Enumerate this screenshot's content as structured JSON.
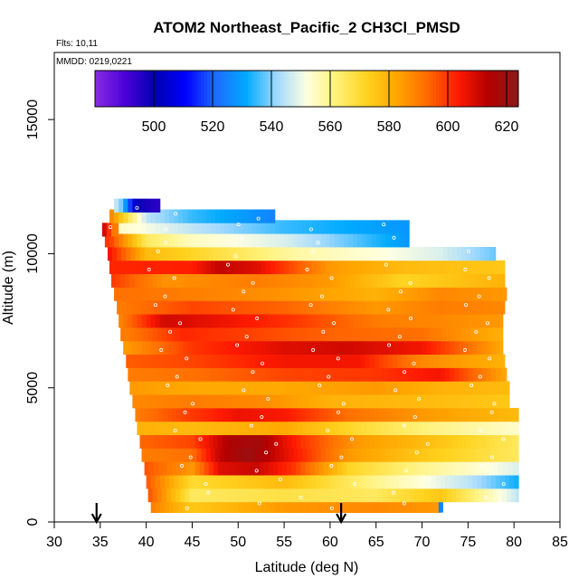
{
  "chart_data": {
    "type": "heatmap",
    "title": "ATOM2 Northeast_Pacific_2 CH3Cl_PMSD",
    "annotations": {
      "flights": "Flts: 10,11",
      "dates": "MMDD: 0219,0221"
    },
    "xlabel": "Latitude (deg N)",
    "ylabel": "Altitude (m)",
    "xlim": [
      30,
      85
    ],
    "ylim": [
      0,
      17500
    ],
    "x_ticks": [
      "30",
      "35",
      "40",
      "45",
      "50",
      "55",
      "60",
      "65",
      "70",
      "75",
      "80",
      "85"
    ],
    "y_ticks": [
      "0",
      "5000",
      "10000",
      "15000"
    ],
    "colorbar": {
      "range": [
        480,
        624
      ],
      "tick_labels": [
        "500",
        "520",
        "540",
        "560",
        "580",
        "600",
        "620"
      ],
      "colors": [
        "#8a2be2",
        "#4b00d8",
        "#0000b0",
        "#0000ff",
        "#1e6cff",
        "#00aaff",
        "#9fd8ff",
        "#ffffe0",
        "#fff176",
        "#ffd21e",
        "#ffa500",
        "#ff6a00",
        "#ff1a00",
        "#b40000",
        "#8b1a1a"
      ]
    },
    "arrows_lat": [
      34.6,
      61.2
    ],
    "layers": [
      {
        "alt": 600,
        "lat": [
          40.5,
          72.0
        ],
        "pts": [
          [
            40.5,
            590
          ],
          [
            45,
            575
          ],
          [
            55,
            585
          ],
          [
            65,
            588
          ],
          [
            72,
            585
          ]
        ],
        "extra": [
          {
            "lat": [
              71.8,
              72.3
            ],
            "v": 525
          }
        ]
      },
      {
        "alt": 1000,
        "lat": [
          40.2,
          80.5
        ],
        "pts": [
          [
            40,
            598
          ],
          [
            45,
            565
          ],
          [
            55,
            568
          ],
          [
            65,
            565
          ],
          [
            72,
            575
          ],
          [
            80.5,
            545
          ]
        ]
      },
      {
        "alt": 1500,
        "lat": [
          40.0,
          80.5
        ],
        "pts": [
          [
            40,
            596
          ],
          [
            45,
            570
          ],
          [
            55,
            578
          ],
          [
            65,
            560
          ],
          [
            75,
            545
          ],
          [
            80.5,
            532
          ]
        ]
      },
      {
        "alt": 2000,
        "lat": [
          39.8,
          80.5
        ],
        "pts": [
          [
            40,
            596
          ],
          [
            45,
            585
          ],
          [
            48,
            608
          ],
          [
            52,
            611
          ],
          [
            56,
            600
          ],
          [
            62,
            572
          ],
          [
            70,
            560
          ],
          [
            75,
            555
          ],
          [
            80.5,
            548
          ]
        ]
      },
      {
        "alt": 2500,
        "lat": [
          39.5,
          80.5
        ],
        "pts": [
          [
            40,
            590
          ],
          [
            45,
            592
          ],
          [
            48,
            612
          ],
          [
            51,
            620
          ],
          [
            55,
            608
          ],
          [
            62,
            585
          ],
          [
            70,
            575
          ],
          [
            80.5,
            565
          ]
        ]
      },
      {
        "alt": 3000,
        "lat": [
          39.3,
          80.5
        ],
        "pts": [
          [
            40,
            594
          ],
          [
            45,
            598
          ],
          [
            49,
            615
          ],
          [
            52,
            618
          ],
          [
            57,
            600
          ],
          [
            63,
            585
          ],
          [
            70,
            578
          ],
          [
            80.5,
            565
          ]
        ]
      },
      {
        "alt": 3500,
        "lat": [
          39.0,
          80.5
        ],
        "pts": [
          [
            40,
            580
          ],
          [
            45,
            578
          ],
          [
            55,
            582
          ],
          [
            63,
            570
          ],
          [
            70,
            562
          ],
          [
            80.5,
            554
          ]
        ]
      },
      {
        "alt": 4000,
        "lat": [
          38.8,
          80.5
        ],
        "pts": [
          [
            39,
            590
          ],
          [
            44,
            598
          ],
          [
            50,
            606
          ],
          [
            55,
            604
          ],
          [
            62,
            592
          ],
          [
            70,
            585
          ],
          [
            80.5,
            578
          ]
        ]
      },
      {
        "alt": 4500,
        "lat": [
          38.5,
          79.5
        ],
        "pts": [
          [
            39,
            588
          ],
          [
            45,
            590
          ],
          [
            52,
            588
          ],
          [
            60,
            580
          ],
          [
            70,
            578
          ],
          [
            79.5,
            575
          ]
        ]
      },
      {
        "alt": 5000,
        "lat": [
          38.2,
          79.5
        ],
        "pts": [
          [
            38,
            585
          ],
          [
            45,
            582
          ],
          [
            55,
            582
          ],
          [
            65,
            585
          ],
          [
            72,
            580
          ],
          [
            79.5,
            578
          ]
        ]
      },
      {
        "alt": 5500,
        "lat": [
          38.0,
          79.2
        ],
        "pts": [
          [
            38,
            590
          ],
          [
            45,
            592
          ],
          [
            55,
            598
          ],
          [
            65,
            600
          ],
          [
            72,
            605
          ],
          [
            79.2,
            582
          ]
        ]
      },
      {
        "alt": 6000,
        "lat": [
          37.8,
          79.0
        ],
        "pts": [
          [
            38,
            595
          ],
          [
            45,
            598
          ],
          [
            55,
            605
          ],
          [
            63,
            605
          ],
          [
            70,
            588
          ],
          [
            79,
            580
          ]
        ]
      },
      {
        "alt": 6500,
        "lat": [
          37.5,
          78.8
        ],
        "pts": [
          [
            38,
            585
          ],
          [
            45,
            600
          ],
          [
            55,
            608
          ],
          [
            62,
            610
          ],
          [
            70,
            605
          ],
          [
            78.8,
            582
          ]
        ]
      },
      {
        "alt": 7000,
        "lat": [
          37.2,
          78.8
        ],
        "pts": [
          [
            38,
            590
          ],
          [
            44,
            602
          ],
          [
            52,
            598
          ],
          [
            60,
            594
          ],
          [
            70,
            592
          ],
          [
            78.8,
            580
          ]
        ]
      },
      {
        "alt": 7500,
        "lat": [
          37.0,
          78.8
        ],
        "pts": [
          [
            37,
            588
          ],
          [
            42,
            610
          ],
          [
            48,
            606
          ],
          [
            56,
            600
          ],
          [
            65,
            590
          ],
          [
            72,
            588
          ],
          [
            78.8,
            585
          ]
        ]
      },
      {
        "alt": 8000,
        "lat": [
          36.8,
          79.0
        ],
        "pts": [
          [
            37,
            590
          ],
          [
            45,
            598
          ],
          [
            55,
            594
          ],
          [
            65,
            585
          ],
          [
            72,
            590
          ],
          [
            79,
            588
          ]
        ]
      },
      {
        "alt": 8500,
        "lat": [
          36.5,
          79.2
        ],
        "pts": [
          [
            37,
            592
          ],
          [
            44,
            590
          ],
          [
            55,
            586
          ],
          [
            65,
            580
          ],
          [
            72,
            588
          ],
          [
            79.2,
            585
          ]
        ]
      },
      {
        "alt": 9000,
        "lat": [
          36.2,
          79.0
        ],
        "pts": [
          [
            36,
            600
          ],
          [
            42,
            586
          ],
          [
            52,
            590
          ],
          [
            60,
            585
          ],
          [
            68,
            572
          ],
          [
            79,
            580
          ]
        ]
      },
      {
        "alt": 9500,
        "lat": [
          36.0,
          79.0
        ],
        "pts": [
          [
            36,
            602
          ],
          [
            45,
            603
          ],
          [
            48,
            612
          ],
          [
            52,
            608
          ],
          [
            60,
            585
          ],
          [
            68,
            578
          ],
          [
            79,
            575
          ]
        ]
      },
      {
        "alt": 10000,
        "lat": [
          35.8,
          78.0
        ],
        "pts": [
          [
            36,
            605
          ],
          [
            40,
            578
          ],
          [
            48,
            568
          ],
          [
            56,
            558
          ],
          [
            66,
            552
          ],
          [
            72,
            548
          ],
          [
            78,
            538
          ]
        ]
      },
      {
        "alt": 10500,
        "lat": [
          35.5,
          68.6
        ],
        "pts": [
          [
            36,
            600
          ],
          [
            40,
            565
          ],
          [
            45,
            555
          ],
          [
            55,
            548
          ],
          [
            62,
            538
          ],
          [
            68.6,
            528
          ]
        ]
      },
      {
        "alt": 10900,
        "lat": [
          35.2,
          37.0
        ],
        "pts": [
          [
            35.3,
            612
          ],
          [
            36.5,
            590
          ]
        ]
      },
      {
        "alt": 11000,
        "lat": [
          37.0,
          68.6
        ],
        "pts": [
          [
            37,
            555
          ],
          [
            45,
            545
          ],
          [
            55,
            535
          ],
          [
            68.6,
            528
          ]
        ]
      },
      {
        "alt": 11400,
        "lat": [
          36.0,
          54.0
        ],
        "pts": [
          [
            36,
            590
          ],
          [
            40,
            545
          ],
          [
            45,
            535
          ],
          [
            54,
            525
          ]
        ]
      },
      {
        "alt": 11800,
        "lat": [
          36.5,
          41.5
        ],
        "pts": [
          [
            37,
            545
          ],
          [
            39,
            500
          ],
          [
            41,
            495
          ]
        ]
      }
    ]
  }
}
